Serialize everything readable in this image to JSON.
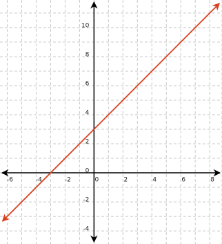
{
  "chart_data": {
    "type": "line",
    "x": [
      -6.33,
      8.67
    ],
    "values": [
      -3.33,
      11.67
    ],
    "color": "#d9401e",
    "xlim": [
      -6.5,
      8.85
    ],
    "ylim": [
      -4.9,
      11.9
    ],
    "xticks": [
      -6,
      -4,
      -2,
      0,
      2,
      4,
      6,
      8
    ],
    "yticks": [
      -4,
      -2,
      0,
      2,
      4,
      6,
      8,
      10
    ],
    "xminor": [
      -5,
      -3,
      -1,
      1,
      3,
      5,
      7,
      8.85
    ],
    "yminor": [
      -3,
      -1,
      1,
      3,
      5,
      7,
      9,
      11
    ],
    "grid": true
  }
}
